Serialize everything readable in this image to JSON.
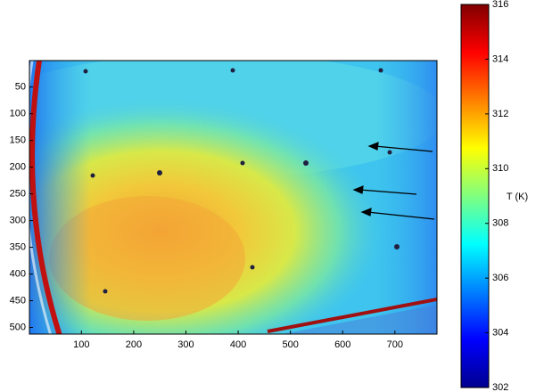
{
  "chart_data": {
    "type": "heatmap",
    "xlim": [
      0.5,
      780.5
    ],
    "ylim": [
      0.5,
      512.5
    ],
    "y_reversed": true,
    "xticks": [
      100,
      200,
      300,
      400,
      500,
      600,
      700
    ],
    "yticks": [
      50,
      100,
      150,
      200,
      250,
      300,
      350,
      400,
      450,
      500
    ],
    "colormap": "jet",
    "colorbar": {
      "label": "T (K)",
      "lim": [
        302,
        316
      ],
      "ticks": [
        302,
        304,
        306,
        308,
        310,
        312,
        314,
        316
      ]
    }
  }
}
